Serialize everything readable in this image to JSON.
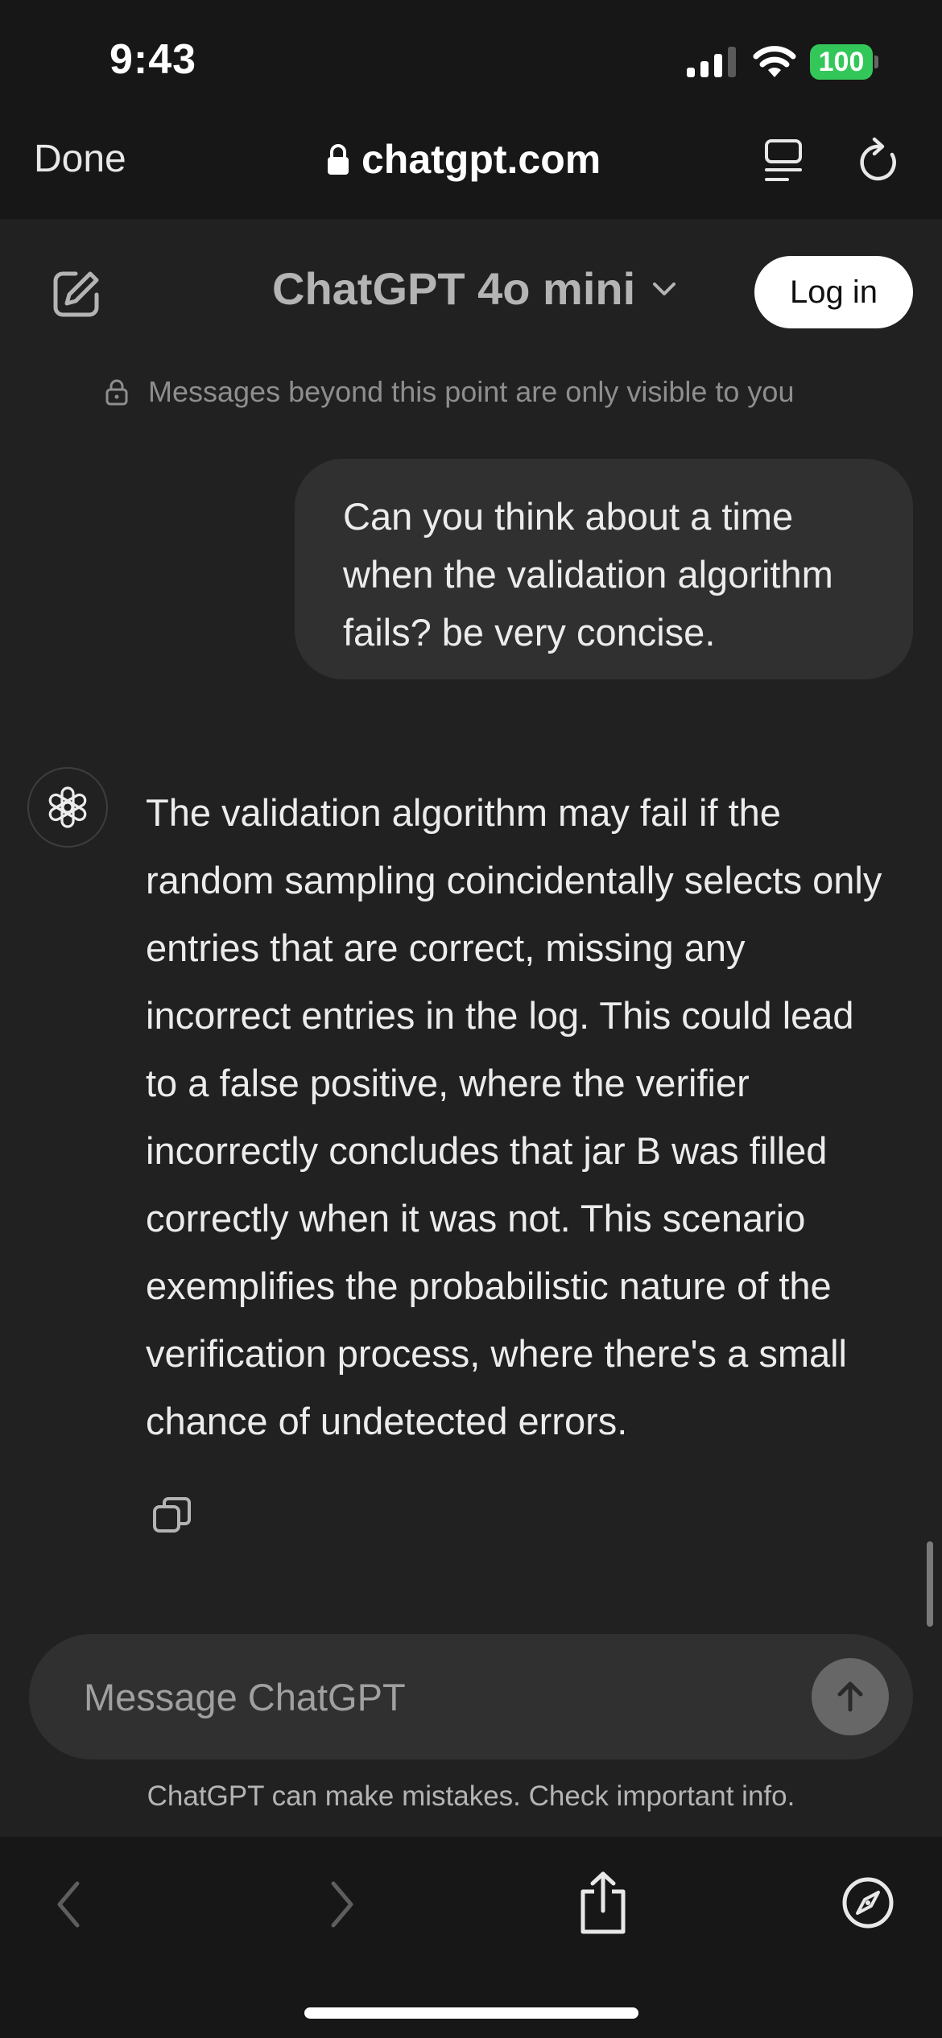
{
  "status_bar": {
    "time": "9:43",
    "battery_level": "100"
  },
  "browser": {
    "done_label": "Done",
    "url": "chatgpt.com",
    "icons": [
      "lock-icon",
      "reader-icon",
      "reload-icon"
    ]
  },
  "chat_header": {
    "model_name": "ChatGPT 4o mini",
    "login_label": "Log in"
  },
  "privacy_note": "Messages beyond this point are only visible to you",
  "messages": {
    "user": "Can you think about a time when the validation algorithm fails? be very concise.",
    "assistant": "The validation algorithm may fail if the random sampling coincidentally selects only entries that are correct, missing any incorrect entries in the log. This could lead to a false positive, where the verifier incorrectly concludes that jar B was filled correctly when it was not. This scenario exemplifies the probabilistic nature of the verification process, where there's a small chance of undetected errors."
  },
  "composer": {
    "placeholder": "Message ChatGPT",
    "disclaimer": "ChatGPT can make mistakes. Check important info."
  },
  "colors": {
    "background": "#212121",
    "chrome": "#171717",
    "bubble": "#303030",
    "battery": "#33c759"
  }
}
